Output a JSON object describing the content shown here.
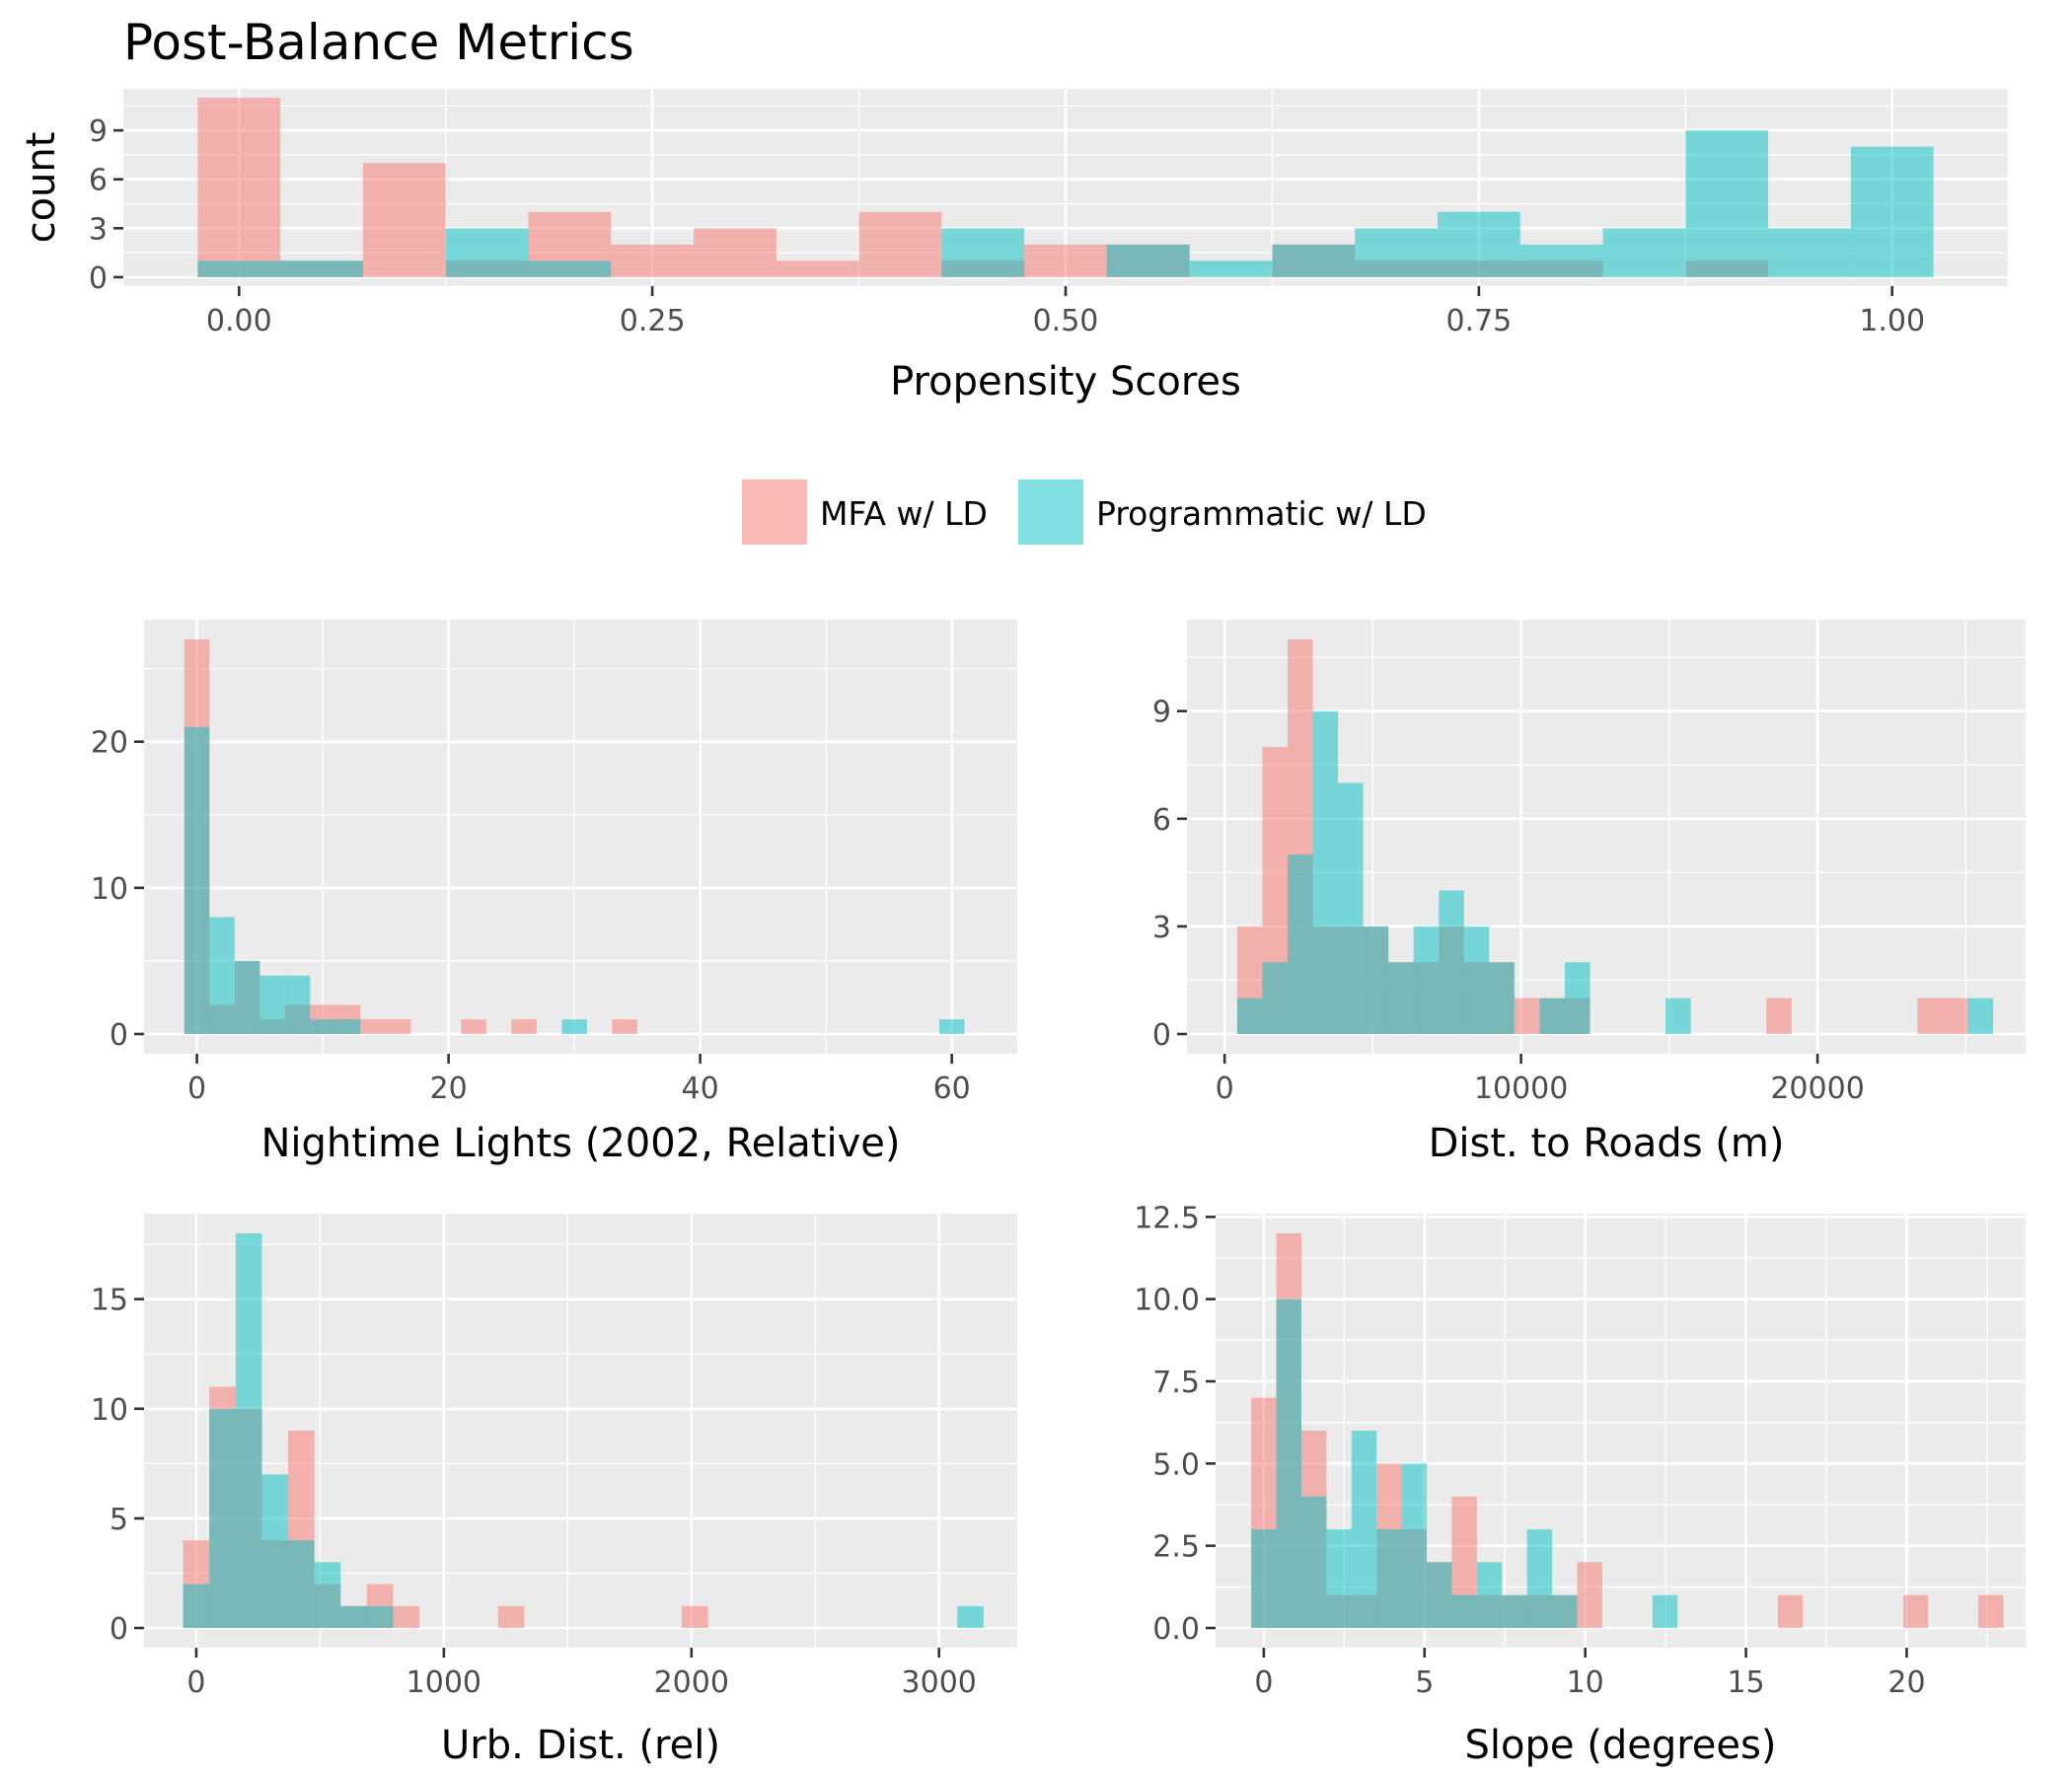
{
  "title": "Post-Balance Metrics",
  "colors": {
    "mfa": "#F8766D",
    "programmatic": "#00BFC4",
    "panel": "#EBEBEB",
    "grid": "#FFFFFF"
  },
  "legend": {
    "position": "between top and bottom panels, centered",
    "items": [
      {
        "label": "MFA w/ LD",
        "color": "#F8766D"
      },
      {
        "label": "Programmatic w/ LD",
        "color": "#00BFC4"
      }
    ]
  },
  "chart_data": [
    {
      "type": "histogram",
      "xlabel": "Propensity Scores",
      "ylabel": "count",
      "binwidth": 0.05,
      "xlim": [
        -0.07,
        1.07
      ],
      "ylim": [
        -0.55,
        11.55
      ],
      "xticks": [
        0.0,
        0.25,
        0.5,
        0.75,
        1.0
      ],
      "xtick_labels": [
        "0.00",
        "0.25",
        "0.50",
        "0.75",
        "1.00"
      ],
      "yticks": [
        0,
        3,
        6,
        9
      ],
      "ytick_labels": [
        "0",
        "3",
        "6",
        "9"
      ],
      "grid": true,
      "series": [
        {
          "name": "MFA w/ LD",
          "bins": [
            [
              0.0,
              11
            ],
            [
              0.05,
              1
            ],
            [
              0.1,
              7
            ],
            [
              0.15,
              1
            ],
            [
              0.2,
              4
            ],
            [
              0.25,
              2
            ],
            [
              0.3,
              3
            ],
            [
              0.35,
              1
            ],
            [
              0.4,
              4
            ],
            [
              0.45,
              1
            ],
            [
              0.5,
              2
            ],
            [
              0.55,
              2
            ],
            [
              0.65,
              2
            ],
            [
              0.7,
              1
            ],
            [
              0.75,
              1
            ],
            [
              0.8,
              1
            ],
            [
              0.9,
              1
            ]
          ]
        },
        {
          "name": "Programmatic w/ LD",
          "bins": [
            [
              0.0,
              1
            ],
            [
              0.05,
              1
            ],
            [
              0.15,
              3
            ],
            [
              0.2,
              1
            ],
            [
              0.45,
              3
            ],
            [
              0.55,
              2
            ],
            [
              0.6,
              1
            ],
            [
              0.65,
              2
            ],
            [
              0.7,
              3
            ],
            [
              0.75,
              4
            ],
            [
              0.8,
              2
            ],
            [
              0.85,
              3
            ],
            [
              0.9,
              9
            ],
            [
              0.95,
              3
            ],
            [
              1.0,
              8
            ]
          ]
        }
      ]
    },
    {
      "type": "histogram",
      "xlabel": "Nightime Lights (2002, Relative)",
      "ylabel": "",
      "binwidth": 2,
      "xlim": [
        -4.2,
        65.2
      ],
      "ylim": [
        -1.35,
        28.35
      ],
      "xticks": [
        0,
        20,
        40,
        60
      ],
      "xtick_labels": [
        "0",
        "20",
        "40",
        "60"
      ],
      "yticks": [
        0,
        10,
        20
      ],
      "ytick_labels": [
        "0",
        "10",
        "20"
      ],
      "grid": true,
      "series": [
        {
          "name": "MFA w/ LD",
          "bins": [
            [
              0,
              27
            ],
            [
              2,
              2
            ],
            [
              4,
              5
            ],
            [
              6,
              1
            ],
            [
              8,
              2
            ],
            [
              10,
              2
            ],
            [
              12,
              2
            ],
            [
              14,
              1
            ],
            [
              16,
              1
            ],
            [
              22,
              1
            ],
            [
              26,
              1
            ],
            [
              34,
              1
            ]
          ]
        },
        {
          "name": "Programmatic w/ LD",
          "bins": [
            [
              0,
              21
            ],
            [
              2,
              8
            ],
            [
              4,
              5
            ],
            [
              6,
              4
            ],
            [
              8,
              4
            ],
            [
              10,
              1
            ],
            [
              12,
              1
            ],
            [
              30,
              1
            ],
            [
              60,
              1
            ]
          ]
        }
      ]
    },
    {
      "type": "histogram",
      "xlabel": "Dist. to Roads (m)",
      "ylabel": "",
      "binwidth": 850,
      "xlim": [
        -1270,
        27020
      ],
      "ylim": [
        -0.55,
        11.55
      ],
      "xticks": [
        0,
        10000,
        20000
      ],
      "xtick_labels": [
        "0",
        "10000",
        "20000"
      ],
      "yticks": [
        0,
        3,
        6,
        9
      ],
      "ytick_labels": [
        "0",
        "3",
        "6",
        "9"
      ],
      "grid": true,
      "series": [
        {
          "name": "MFA w/ LD",
          "bins": [
            [
              850,
              3
            ],
            [
              1700,
              8
            ],
            [
              2550,
              11
            ],
            [
              3400,
              3
            ],
            [
              4250,
              3
            ],
            [
              5100,
              3
            ],
            [
              5950,
              2
            ],
            [
              6800,
              2
            ],
            [
              7650,
              3
            ],
            [
              8500,
              2
            ],
            [
              9350,
              2
            ],
            [
              10200,
              1
            ],
            [
              11050,
              1
            ],
            [
              11900,
              1
            ],
            [
              18700,
              1
            ],
            [
              23800,
              1
            ],
            [
              24650,
              1
            ]
          ]
        },
        {
          "name": "Programmatic w/ LD",
          "bins": [
            [
              850,
              1
            ],
            [
              1700,
              2
            ],
            [
              2550,
              5
            ],
            [
              3400,
              9
            ],
            [
              4250,
              7
            ],
            [
              5100,
              3
            ],
            [
              5950,
              2
            ],
            [
              6800,
              3
            ],
            [
              7650,
              4
            ],
            [
              8500,
              3
            ],
            [
              9350,
              2
            ],
            [
              11050,
              1
            ],
            [
              11900,
              2
            ],
            [
              15300,
              1
            ],
            [
              25500,
              1
            ]
          ]
        }
      ]
    },
    {
      "type": "histogram",
      "xlabel": "Urb. Dist. (rel)",
      "ylabel": "",
      "binwidth": 106,
      "xlim": [
        -211,
        3316
      ],
      "ylim": [
        -0.9,
        18.9
      ],
      "xticks": [
        0,
        1000,
        2000,
        3000
      ],
      "xtick_labels": [
        "0",
        "1000",
        "2000",
        "3000"
      ],
      "yticks": [
        0,
        5,
        10,
        15
      ],
      "ytick_labels": [
        "0",
        "5",
        "10",
        "15"
      ],
      "grid": true,
      "series": [
        {
          "name": "MFA w/ LD",
          "bins": [
            [
              0,
              4
            ],
            [
              106,
              11
            ],
            [
              212,
              10
            ],
            [
              318,
              4
            ],
            [
              424,
              9
            ],
            [
              530,
              2
            ],
            [
              636,
              1
            ],
            [
              742,
              2
            ],
            [
              848,
              1
            ],
            [
              1272,
              1
            ],
            [
              2014,
              1
            ]
          ]
        },
        {
          "name": "Programmatic w/ LD",
          "bins": [
            [
              0,
              2
            ],
            [
              106,
              10
            ],
            [
              212,
              18
            ],
            [
              318,
              7
            ],
            [
              424,
              4
            ],
            [
              530,
              3
            ],
            [
              636,
              1
            ],
            [
              742,
              1
            ],
            [
              3127,
              1
            ]
          ]
        }
      ]
    },
    {
      "type": "histogram",
      "xlabel": "Slope (degrees)",
      "ylabel": "",
      "binwidth": 0.78,
      "xlim": [
        -1.5,
        23.7
      ],
      "ylim": [
        -0.6,
        12.6
      ],
      "xticks": [
        0,
        5,
        10,
        15,
        20
      ],
      "xtick_labels": [
        "0",
        "5",
        "10",
        "15",
        "20"
      ],
      "yticks": [
        0.0,
        2.5,
        5.0,
        7.5,
        10.0,
        12.5
      ],
      "ytick_labels": [
        "0.0",
        "2.5",
        "5.0",
        "7.5",
        "10.0",
        "12.5"
      ],
      "grid": true,
      "series": [
        {
          "name": "MFA w/ LD",
          "bins": [
            [
              0,
              7
            ],
            [
              0.78,
              12
            ],
            [
              1.56,
              6
            ],
            [
              2.34,
              1
            ],
            [
              3.12,
              1
            ],
            [
              3.9,
              5
            ],
            [
              4.68,
              3
            ],
            [
              5.46,
              2
            ],
            [
              6.24,
              4
            ],
            [
              7.02,
              1
            ],
            [
              7.8,
              1
            ],
            [
              8.58,
              1
            ],
            [
              9.36,
              1
            ],
            [
              10.14,
              2
            ],
            [
              16.38,
              1
            ],
            [
              20.28,
              1
            ],
            [
              22.62,
              1
            ]
          ]
        },
        {
          "name": "Programmatic w/ LD",
          "bins": [
            [
              0,
              3
            ],
            [
              0.78,
              10
            ],
            [
              1.56,
              4
            ],
            [
              2.34,
              3
            ],
            [
              3.12,
              6
            ],
            [
              3.9,
              3
            ],
            [
              4.68,
              5
            ],
            [
              5.46,
              2
            ],
            [
              6.24,
              1
            ],
            [
              7.02,
              2
            ],
            [
              7.8,
              1
            ],
            [
              8.58,
              3
            ],
            [
              9.36,
              1
            ],
            [
              12.48,
              1
            ]
          ]
        }
      ]
    }
  ]
}
